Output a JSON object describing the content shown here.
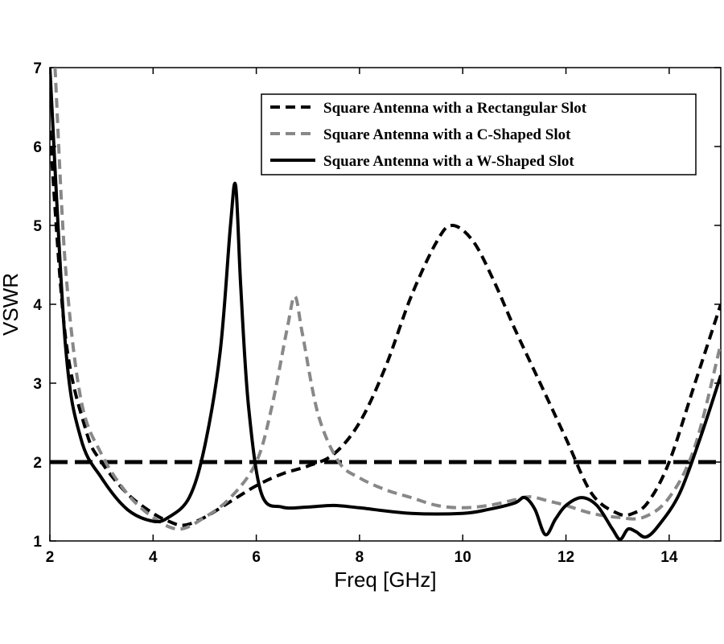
{
  "chart_data": {
    "type": "line",
    "title": "",
    "xlabel": "Freq [GHz]",
    "ylabel": "VSWR",
    "xlim": [
      2,
      15
    ],
    "ylim": [
      1,
      7
    ],
    "xticks": [
      2,
      4,
      6,
      8,
      10,
      12,
      14
    ],
    "yticks": [
      1,
      2,
      3,
      4,
      5,
      6,
      7
    ],
    "grid": false,
    "legend_position": "top-right",
    "reference_line": {
      "y": 2,
      "style": "dashed",
      "color": "#000000"
    },
    "series": [
      {
        "name": "Square Antenna with a Rectangular Slot",
        "color": "#000000",
        "style": "dashed",
        "x": [
          2.0,
          2.3,
          2.7,
          3.0,
          3.5,
          4.0,
          4.3,
          4.6,
          5.0,
          5.5,
          6.0,
          6.5,
          7.0,
          7.5,
          8.0,
          8.5,
          9.0,
          9.5,
          9.8,
          10.2,
          10.6,
          11.0,
          11.5,
          12.0,
          12.5,
          13.0,
          13.3,
          13.6,
          14.0,
          14.5,
          15.0
        ],
        "y": [
          6.2,
          3.6,
          2.4,
          2.0,
          1.6,
          1.35,
          1.25,
          1.2,
          1.3,
          1.5,
          1.7,
          1.85,
          1.95,
          2.1,
          2.5,
          3.2,
          4.1,
          4.8,
          5.0,
          4.8,
          4.3,
          3.7,
          3.0,
          2.3,
          1.6,
          1.35,
          1.35,
          1.5,
          2.0,
          3.0,
          4.0
        ]
      },
      {
        "name": "Square Antenna with a C-Shaped Slot",
        "color": "#888888",
        "style": "dashed",
        "x": [
          2.1,
          2.3,
          2.6,
          3.0,
          3.5,
          4.0,
          4.5,
          5.0,
          5.5,
          6.0,
          6.3,
          6.6,
          6.75,
          6.9,
          7.2,
          7.6,
          8.0,
          8.5,
          9.0,
          9.5,
          10.0,
          10.5,
          11.0,
          11.3,
          11.7,
          12.0,
          12.5,
          13.0,
          13.5,
          14.0,
          14.5,
          15.0
        ],
        "y": [
          7.0,
          4.5,
          2.8,
          2.1,
          1.6,
          1.3,
          1.15,
          1.3,
          1.55,
          2.0,
          2.7,
          3.7,
          4.1,
          3.6,
          2.6,
          2.0,
          1.8,
          1.65,
          1.55,
          1.45,
          1.42,
          1.45,
          1.52,
          1.56,
          1.5,
          1.45,
          1.35,
          1.3,
          1.3,
          1.55,
          2.2,
          3.5
        ]
      },
      {
        "name": "Square Antenna with a W-Shaped Slot",
        "color": "#000000",
        "style": "solid",
        "x": [
          2.0,
          2.3,
          2.6,
          3.0,
          3.5,
          4.0,
          4.3,
          4.7,
          5.0,
          5.3,
          5.5,
          5.6,
          5.7,
          5.85,
          6.1,
          6.5,
          7.0,
          7.5,
          8.0,
          9.0,
          10.0,
          10.5,
          11.0,
          11.2,
          11.4,
          11.6,
          11.8,
          12.0,
          12.3,
          12.6,
          12.9,
          13.05,
          13.2,
          13.35,
          13.55,
          13.8,
          14.2,
          14.6,
          15.0
        ],
        "y": [
          7.0,
          3.5,
          2.3,
          1.8,
          1.4,
          1.25,
          1.3,
          1.55,
          2.2,
          3.4,
          5.0,
          5.5,
          4.2,
          2.7,
          1.6,
          1.43,
          1.43,
          1.45,
          1.42,
          1.35,
          1.35,
          1.4,
          1.48,
          1.55,
          1.4,
          1.08,
          1.28,
          1.45,
          1.55,
          1.45,
          1.15,
          1.02,
          1.15,
          1.12,
          1.05,
          1.2,
          1.6,
          2.3,
          3.1
        ]
      }
    ]
  }
}
